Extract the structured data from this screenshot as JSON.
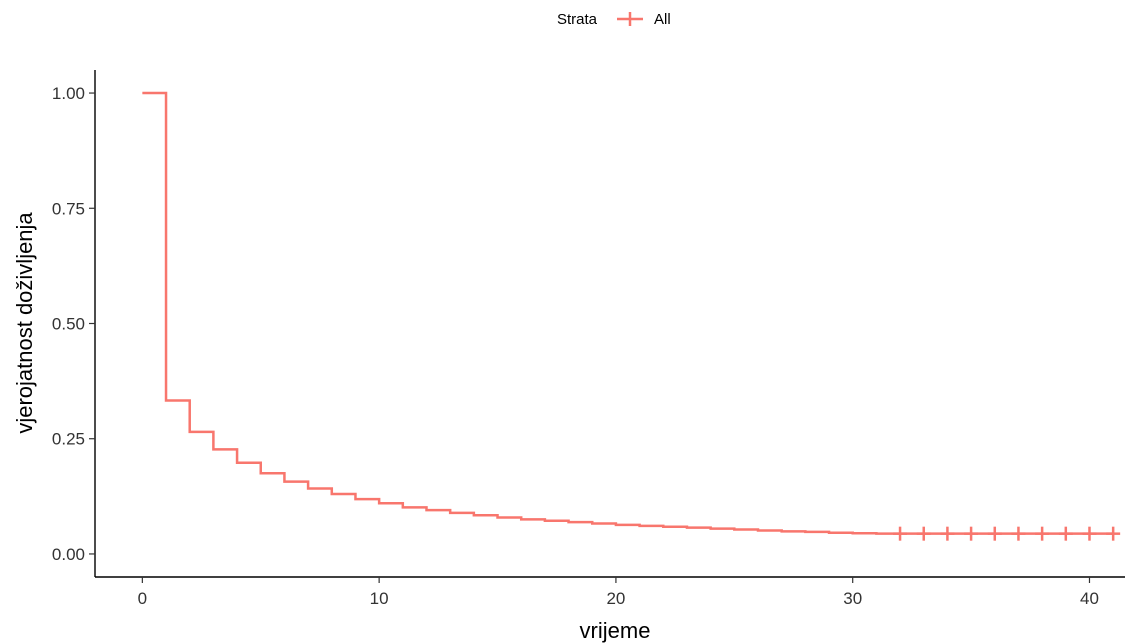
{
  "chart_data": {
    "type": "line",
    "title": "",
    "xlabel": "vrijeme",
    "ylabel": "vjerojatnost doživljenja",
    "xlim": [
      -2,
      41.5
    ],
    "ylim": [
      -0.05,
      1.05
    ],
    "x_ticks": [
      0,
      10,
      20,
      30,
      40
    ],
    "y_ticks": [
      0.0,
      0.25,
      0.5,
      0.75,
      1.0
    ],
    "y_tick_labels": [
      "0.00",
      "0.25",
      "0.50",
      "0.75",
      "1.00"
    ],
    "grid": false,
    "legend": {
      "title": "Strata",
      "position": "top",
      "entries": [
        "All"
      ]
    },
    "series": [
      {
        "name": "All",
        "color": "#f8766d",
        "step": true,
        "x": [
          0,
          1,
          2,
          3,
          4,
          5,
          6,
          7,
          8,
          9,
          10,
          11,
          12,
          13,
          14,
          15,
          16,
          17,
          18,
          19,
          20,
          21,
          22,
          23,
          24,
          25,
          26,
          27,
          28,
          29,
          30,
          31,
          32,
          33,
          34,
          35,
          36,
          37,
          38,
          39,
          40,
          41
        ],
        "y": [
          1.0,
          0.333,
          0.265,
          0.227,
          0.198,
          0.175,
          0.157,
          0.142,
          0.13,
          0.119,
          0.11,
          0.101,
          0.095,
          0.089,
          0.084,
          0.079,
          0.075,
          0.072,
          0.069,
          0.066,
          0.063,
          0.061,
          0.059,
          0.057,
          0.055,
          0.053,
          0.051,
          0.049,
          0.048,
          0.046,
          0.045,
          0.044,
          0.044,
          0.044,
          0.044,
          0.044,
          0.044,
          0.044,
          0.044,
          0.044,
          0.044,
          0.044
        ],
        "censored_x": [
          32,
          33,
          34,
          35,
          36,
          37,
          38,
          39,
          40,
          41
        ],
        "censored_y": 0.044
      }
    ]
  }
}
